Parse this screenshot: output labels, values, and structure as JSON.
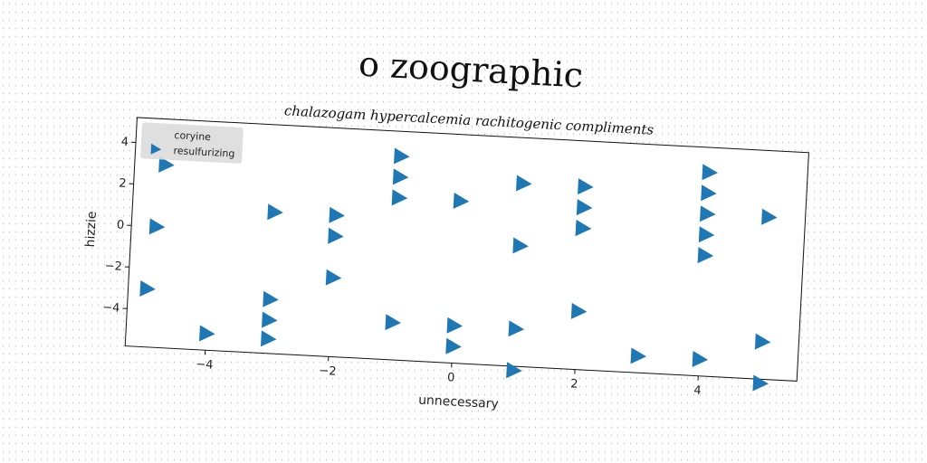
{
  "chart_data": {
    "type": "scatter",
    "title": "o zoographic",
    "subtitle": "chalazogam hypercalcemia rachitogenic compliments",
    "xlabel": "unnecessary",
    "ylabel": "hizzie",
    "xlim": [
      -5.3,
      5.6
    ],
    "ylim": [
      -5.8,
      5.2
    ],
    "xticks": [
      -4,
      -2,
      0,
      2,
      4
    ],
    "yticks": [
      -4,
      -2,
      0,
      2,
      4
    ],
    "grid": false,
    "legend": {
      "placement": "upper-left",
      "entries": [
        "coryine",
        "resulfurizing"
      ]
    },
    "series": [
      {
        "name": "coryine",
        "marker": "none",
        "color": "#1f77b4",
        "x": [],
        "y": []
      },
      {
        "name": "resulfurizing",
        "marker": "triangle-right",
        "color": "#1f77b4",
        "x": [
          -4.8,
          -4.9,
          -5.0,
          -4.0,
          -3.0,
          -3.0,
          -3.0,
          -3.0,
          -2.0,
          -2.0,
          -2.0,
          -1.0,
          -1.0,
          -1.0,
          -1.0,
          0.0,
          0.0,
          0.0,
          1.0,
          1.0,
          1.0,
          1.0,
          2.0,
          2.0,
          2.0,
          2.0,
          2.0,
          3.0,
          4.0,
          4.0,
          4.0,
          4.0,
          4.0,
          4.0,
          5.0,
          5.0,
          5.0
        ],
        "y": [
          3.0,
          0.0,
          -3.0,
          -5.0,
          1.0,
          -3.2,
          -4.2,
          -5.1,
          1.0,
          0.0,
          -2.0,
          4.0,
          3.0,
          2.0,
          -4.0,
          2.0,
          -4.0,
          -5.0,
          3.0,
          0.0,
          -4.0,
          -6.0,
          3.0,
          2.0,
          1.0,
          -3.0,
          1.0,
          -5.0,
          4.0,
          3.0,
          2.0,
          0.0,
          -5.0,
          1.0,
          2.0,
          -4.0,
          -6.0
        ]
      }
    ]
  }
}
